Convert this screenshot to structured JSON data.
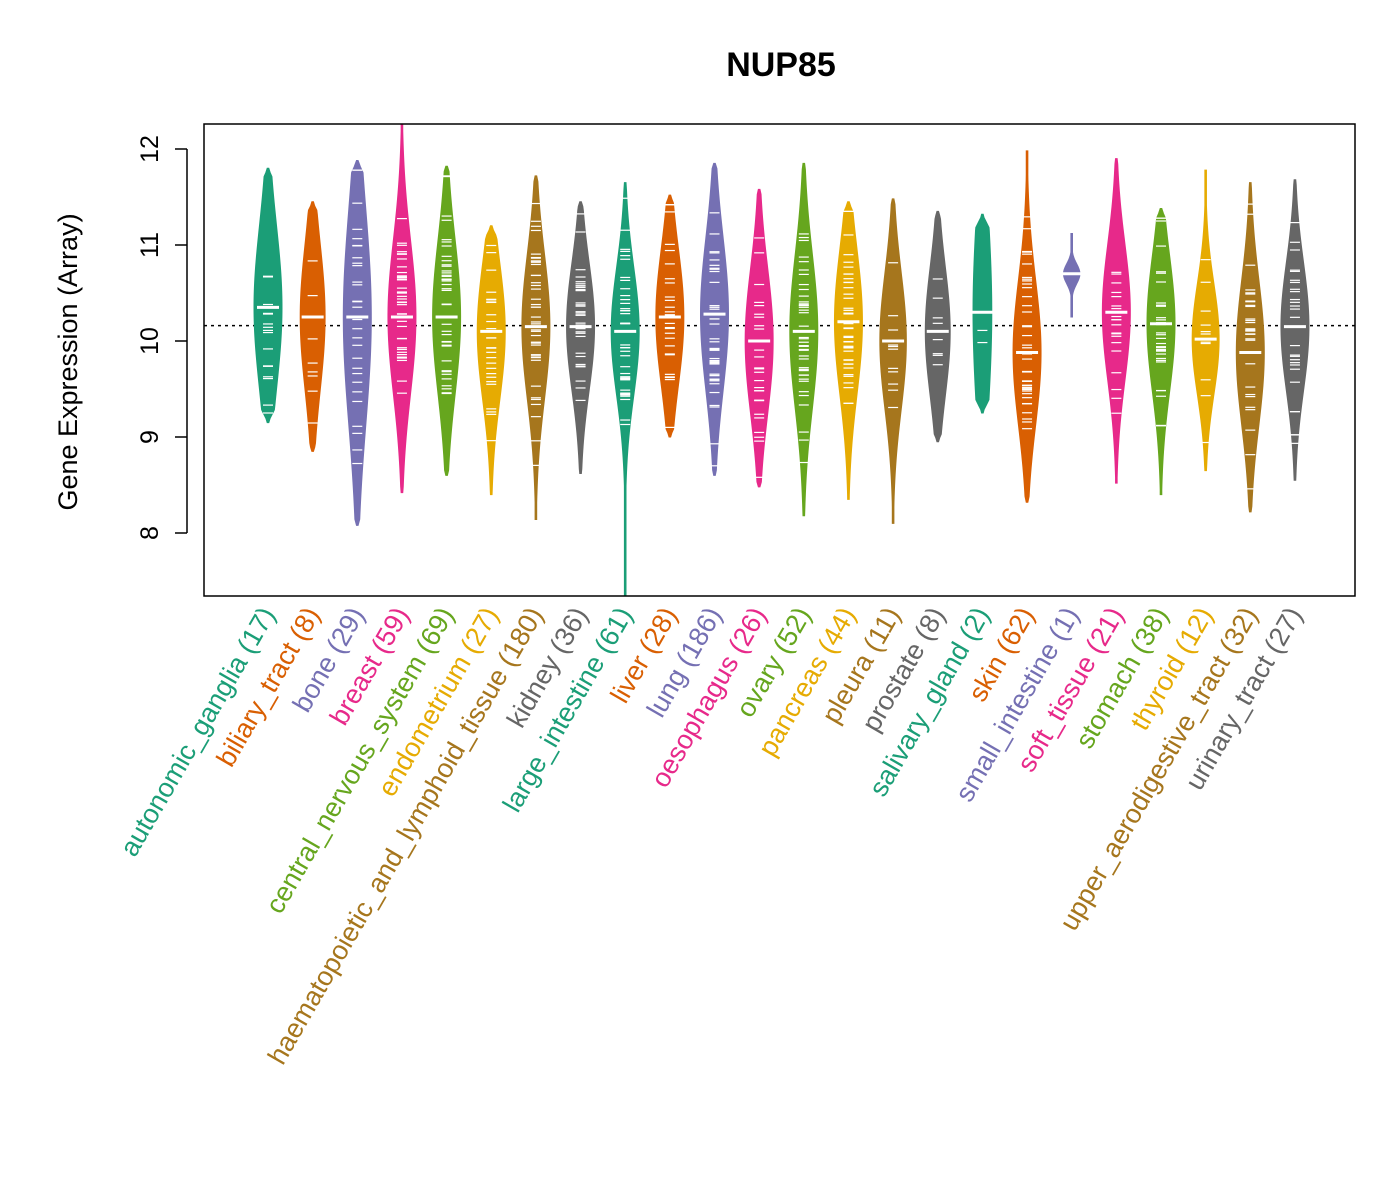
{
  "chart_data": {
    "type": "violin",
    "title": "NUP85",
    "xlabel": "",
    "ylabel": "Gene Expression (Array)",
    "ylim": [
      7.35,
      12.25
    ],
    "yticks": [
      8,
      9,
      10,
      11,
      12
    ],
    "reference_line": 10.16,
    "categories": [
      {
        "name": "autonomic_ganglia",
        "n": 17,
        "label": "autonomic_ganglia (17)",
        "color": "#1B9E77",
        "min": 9.15,
        "max": 11.8,
        "q1": 9.8,
        "median": 10.35,
        "q3": 10.75
      },
      {
        "name": "biliary_tract",
        "n": 8,
        "label": "biliary_tract (8)",
        "color": "#D95F02",
        "min": 8.85,
        "max": 11.45,
        "q1": 9.85,
        "median": 10.25,
        "q3": 10.7
      },
      {
        "name": "bone",
        "n": 29,
        "label": "bone (29)",
        "color": "#7570B3",
        "min": 8.08,
        "max": 11.88,
        "q1": 9.55,
        "median": 10.25,
        "q3": 10.8
      },
      {
        "name": "breast",
        "n": 59,
        "label": "breast (59)",
        "color": "#E7298A",
        "min": 8.42,
        "max": 12.25,
        "q1": 9.8,
        "median": 10.25,
        "q3": 10.7
      },
      {
        "name": "central_nervous_system",
        "n": 69,
        "label": "central_nervous_system (69)",
        "color": "#66A61E",
        "min": 8.6,
        "max": 11.82,
        "q1": 9.85,
        "median": 10.25,
        "q3": 10.75
      },
      {
        "name": "endometrium",
        "n": 27,
        "label": "endometrium (27)",
        "color": "#E6AB02",
        "min": 8.4,
        "max": 11.2,
        "q1": 9.75,
        "median": 10.1,
        "q3": 10.55
      },
      {
        "name": "haematopoietic_and_lymphoid_tissue",
        "n": 180,
        "label": "haematopoietic_and_lymphoid_tissue (180)",
        "color": "#A6761D",
        "min": 8.14,
        "max": 11.72,
        "q1": 9.75,
        "median": 10.15,
        "q3": 10.6
      },
      {
        "name": "kidney",
        "n": 36,
        "label": "kidney (36)",
        "color": "#666666",
        "min": 8.62,
        "max": 11.45,
        "q1": 9.8,
        "median": 10.15,
        "q3": 10.55
      },
      {
        "name": "large_intestine",
        "n": 61,
        "label": "large_intestine (61)",
        "color": "#1B9E77",
        "min": 7.35,
        "max": 11.65,
        "q1": 9.75,
        "median": 10.1,
        "q3": 10.5
      },
      {
        "name": "liver",
        "n": 28,
        "label": "liver (28)",
        "color": "#D95F02",
        "min": 9.0,
        "max": 11.52,
        "q1": 9.85,
        "median": 10.25,
        "q3": 10.65
      },
      {
        "name": "lung",
        "n": 186,
        "label": "lung (186)",
        "color": "#7570B3",
        "min": 8.6,
        "max": 11.85,
        "q1": 9.85,
        "median": 10.28,
        "q3": 10.75
      },
      {
        "name": "oesophagus",
        "n": 26,
        "label": "oesophagus (26)",
        "color": "#E7298A",
        "min": 8.48,
        "max": 11.58,
        "q1": 9.6,
        "median": 10.0,
        "q3": 10.45
      },
      {
        "name": "ovary",
        "n": 52,
        "label": "ovary (52)",
        "color": "#66A61E",
        "min": 8.18,
        "max": 11.85,
        "q1": 9.7,
        "median": 10.1,
        "q3": 10.6
      },
      {
        "name": "pancreas",
        "n": 44,
        "label": "pancreas (44)",
        "color": "#E6AB02",
        "min": 8.35,
        "max": 11.45,
        "q1": 9.8,
        "median": 10.2,
        "q3": 10.65
      },
      {
        "name": "pleura",
        "n": 11,
        "label": "pleura (11)",
        "color": "#A6761D",
        "min": 8.1,
        "max": 11.48,
        "q1": 9.75,
        "median": 10.0,
        "q3": 10.55
      },
      {
        "name": "prostate",
        "n": 8,
        "label": "prostate (8)",
        "color": "#666666",
        "min": 8.95,
        "max": 11.35,
        "q1": 9.75,
        "median": 10.1,
        "q3": 10.5
      },
      {
        "name": "salivary_gland",
        "n": 2,
        "label": "salivary_gland (2)",
        "color": "#1B9E77",
        "min": 9.25,
        "max": 11.32,
        "q1": 9.7,
        "median": 10.3,
        "q3": 10.9
      },
      {
        "name": "skin",
        "n": 62,
        "label": "skin (62)",
        "color": "#D95F02",
        "min": 8.32,
        "max": 11.98,
        "q1": 9.5,
        "median": 9.88,
        "q3": 10.35
      },
      {
        "name": "small_intestine",
        "n": 1,
        "label": "small_intestine (1)",
        "color": "#7570B3",
        "min": 10.25,
        "max": 11.12,
        "q1": 10.7,
        "median": 10.7,
        "q3": 10.7
      },
      {
        "name": "soft_tissue",
        "n": 21,
        "label": "soft_tissue (21)",
        "color": "#E7298A",
        "min": 8.52,
        "max": 11.9,
        "q1": 9.95,
        "median": 10.3,
        "q3": 10.75
      },
      {
        "name": "stomach",
        "n": 38,
        "label": "stomach (38)",
        "color": "#66A61E",
        "min": 8.4,
        "max": 11.38,
        "q1": 9.8,
        "median": 10.18,
        "q3": 10.6
      },
      {
        "name": "thyroid",
        "n": 12,
        "label": "thyroid (12)",
        "color": "#E6AB02",
        "min": 8.65,
        "max": 11.78,
        "q1": 9.65,
        "median": 10.02,
        "q3": 10.3
      },
      {
        "name": "upper_aerodigestive_tract",
        "n": 32,
        "label": "upper_aerodigestive_tract (32)",
        "color": "#A6761D",
        "min": 8.22,
        "max": 11.65,
        "q1": 9.45,
        "median": 9.88,
        "q3": 10.3
      },
      {
        "name": "urinary_tract",
        "n": 27,
        "label": "urinary_tract (27)",
        "color": "#666666",
        "min": 8.55,
        "max": 11.68,
        "q1": 9.75,
        "median": 10.15,
        "q3": 10.5
      }
    ]
  }
}
